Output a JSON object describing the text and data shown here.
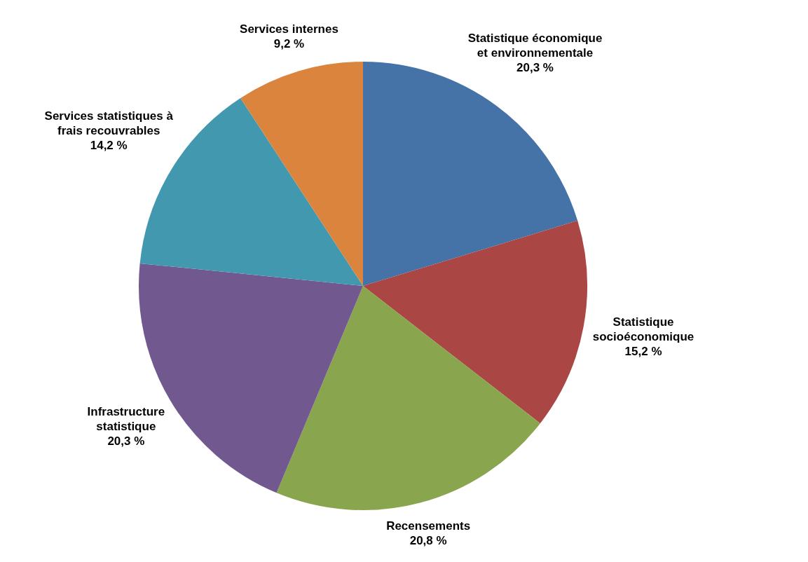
{
  "chart_data": {
    "type": "pie",
    "categories": [
      "Statistique économique et environnementale",
      "Statistique socioéconomique",
      "Recensements",
      "Infrastructure statistique",
      "Services statistiques à frais recouvrables",
      "Services internes"
    ],
    "values": [
      20.3,
      15.2,
      20.8,
      20.3,
      14.2,
      9.2
    ],
    "colors": [
      "#4572a7",
      "#aa4643",
      "#89a54e",
      "#71588f",
      "#4198af",
      "#db843d"
    ],
    "value_labels": [
      "20,3 %",
      "15,2 %",
      "20,8 %",
      "20,3 %",
      "14,2 %",
      "9,2 %"
    ],
    "legend": false
  }
}
